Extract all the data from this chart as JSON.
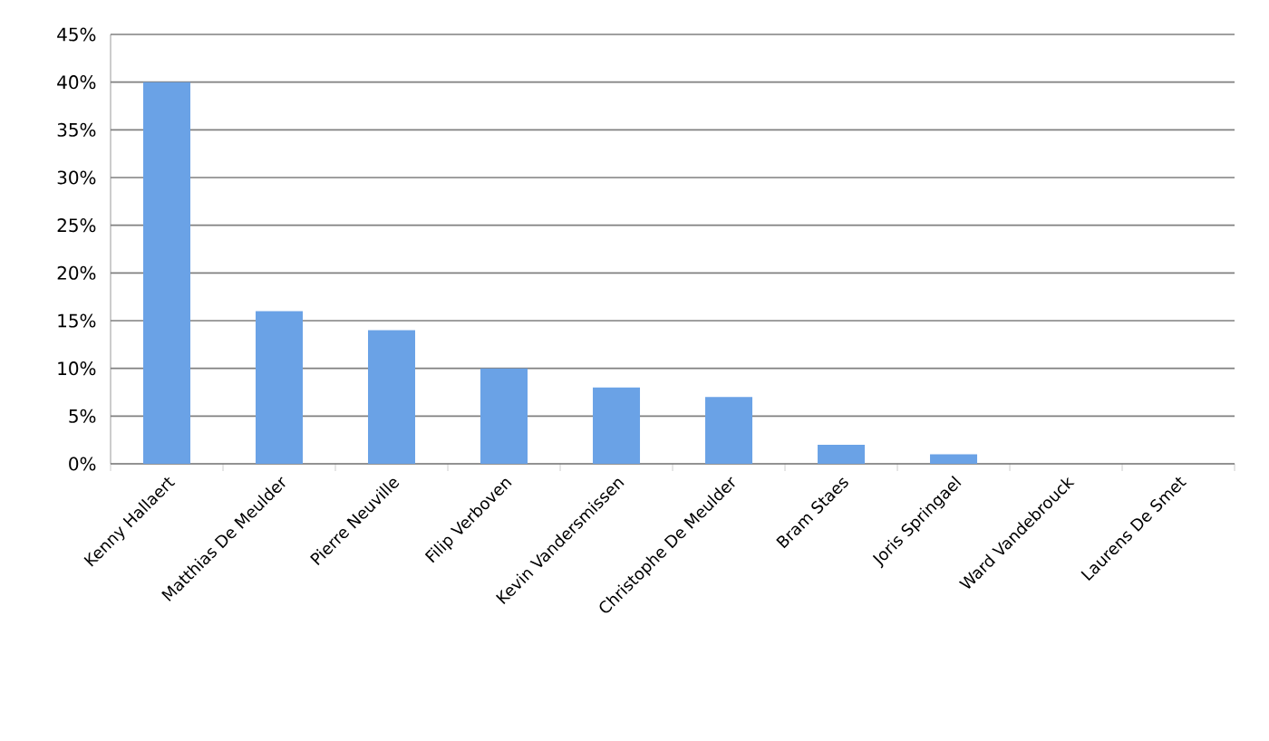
{
  "chart_data": {
    "type": "bar",
    "categories": [
      "Kenny Hallaert",
      "Matthias De Meulder",
      "Pierre Neuville",
      "Filip Verboven",
      "Kevin Vandersmissen",
      "Christophe De Meulder",
      "Bram Staes",
      "Joris Springael",
      "Ward Vandebrouck",
      "Laurens De Smet"
    ],
    "values": [
      40,
      16,
      14,
      10,
      8,
      7,
      2,
      1,
      0,
      0
    ],
    "color": "#6aa2e6",
    "ylim": [
      0,
      45
    ],
    "yticks": [
      {
        "value": 0,
        "label": "0%"
      },
      {
        "value": 5,
        "label": "5%"
      },
      {
        "value": 10,
        "label": "10%"
      },
      {
        "value": 15,
        "label": "15%"
      },
      {
        "value": 20,
        "label": "20%"
      },
      {
        "value": 25,
        "label": "25%"
      },
      {
        "value": 30,
        "label": "30%"
      },
      {
        "value": 35,
        "label": "35%"
      },
      {
        "value": 40,
        "label": "40%"
      },
      {
        "value": 45,
        "label": "45%"
      }
    ],
    "grid": "y"
  }
}
